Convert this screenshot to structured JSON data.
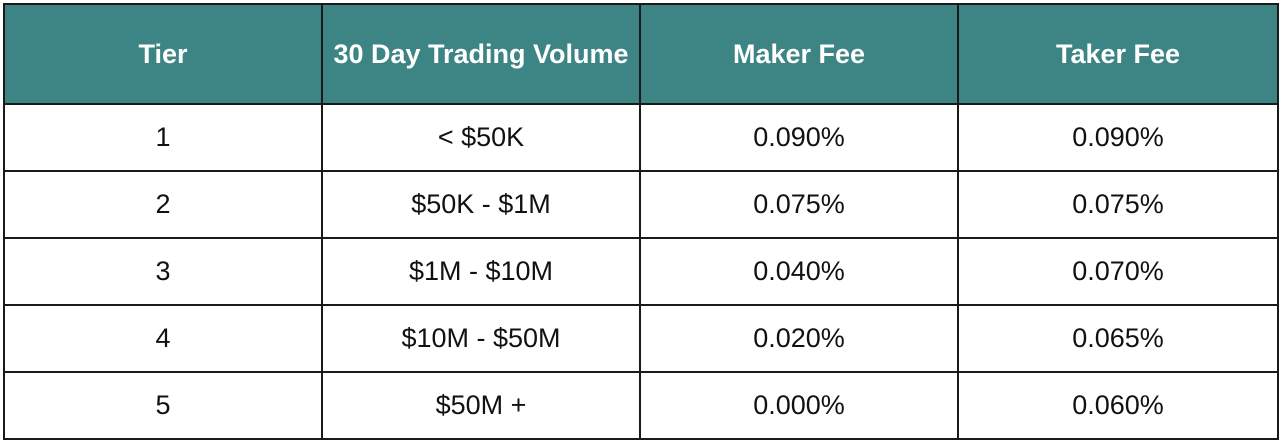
{
  "table": {
    "headers": [
      "Tier",
      "30 Day Trading Volume",
      "Maker Fee",
      "Taker Fee"
    ],
    "rows": [
      [
        "1",
        "< $50K",
        "0.090%",
        "0.090%"
      ],
      [
        "2",
        "$50K - $1M",
        "0.075%",
        "0.075%"
      ],
      [
        "3",
        "$1M - $10M",
        "0.040%",
        "0.070%"
      ],
      [
        "4",
        "$10M - $50M",
        "0.020%",
        "0.065%"
      ],
      [
        "5",
        "$50M +",
        "0.000%",
        "0.060%"
      ]
    ]
  },
  "colors": {
    "header_background": "#3d8585",
    "header_text": "#ffffff",
    "border": "#1a1a1a",
    "body_text": "#111111"
  }
}
